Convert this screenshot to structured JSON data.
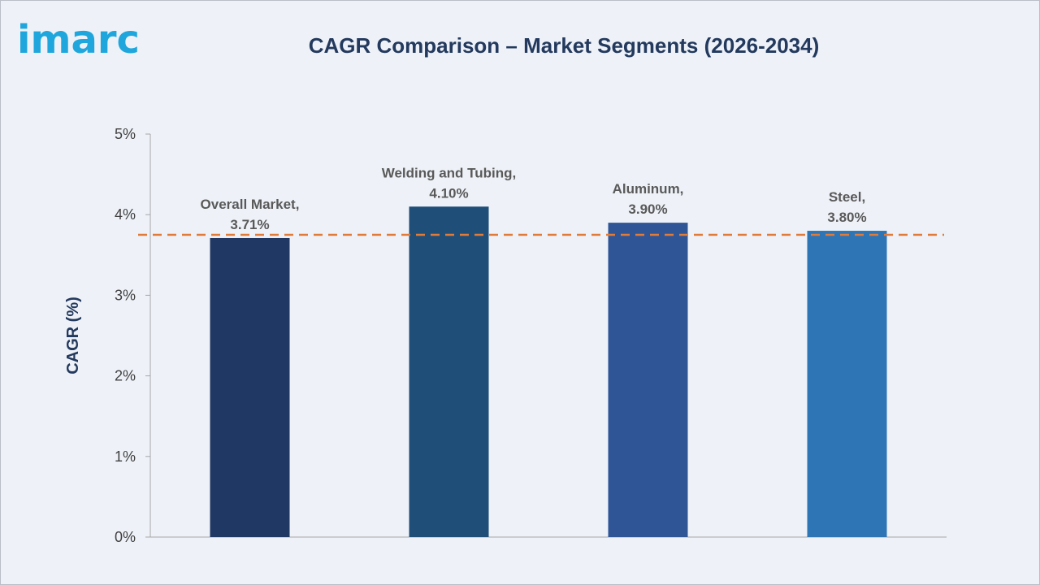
{
  "logo_text": "imarc",
  "chart_data": {
    "type": "bar",
    "title": "CAGR Comparison – Market Segments (2026-2034)",
    "ylabel": "CAGR (%)",
    "xlabel": "",
    "ylim": [
      0,
      5
    ],
    "yticks": [
      "0%",
      "1%",
      "2%",
      "3%",
      "4%",
      "5%"
    ],
    "categories": [
      "Overall Market",
      "Welding and Tubing",
      "Aluminum",
      "Steel"
    ],
    "values": [
      3.71,
      4.1,
      3.9,
      3.8
    ],
    "data_labels": [
      [
        "Overall Market,",
        "3.71%"
      ],
      [
        "Welding and Tubing,",
        "4.10%"
      ],
      [
        "Aluminum,",
        "3.90%"
      ],
      [
        "Steel,",
        "3.80%"
      ]
    ],
    "bar_colors": [
      "#203864",
      "#1f4e79",
      "#2f5597",
      "#2e75b6"
    ],
    "reference_line": {
      "value": 3.75,
      "style": "dashed",
      "color": "#e07b39"
    },
    "grid": false,
    "legend": "none"
  }
}
